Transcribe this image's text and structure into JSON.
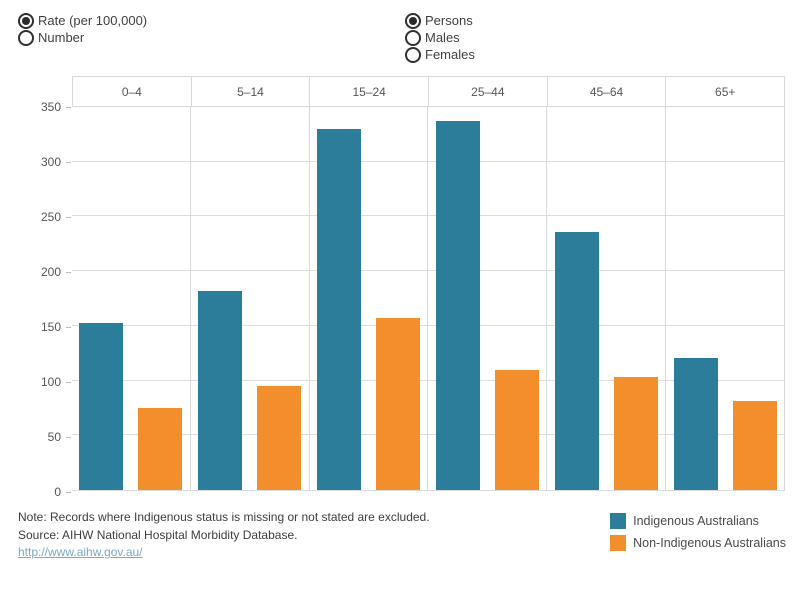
{
  "controls": {
    "measure": {
      "name": "measure",
      "options": [
        {
          "label": "Rate (per 100,000)",
          "selected": true
        },
        {
          "label": "Number",
          "selected": false
        }
      ]
    },
    "sex": {
      "name": "sex",
      "options": [
        {
          "label": "Persons",
          "selected": true
        },
        {
          "label": "Males",
          "selected": false
        },
        {
          "label": "Females",
          "selected": false
        }
      ]
    }
  },
  "chart_data": {
    "type": "bar",
    "categories": [
      "0–4",
      "5–14",
      "15–24",
      "25–44",
      "45–64",
      "65+"
    ],
    "series": [
      {
        "name": "Indigenous Australians",
        "color": "#2b7d99",
        "values": [
          153,
          182,
          330,
          337,
          236,
          121
        ]
      },
      {
        "name": "Non-Indigenous Australians",
        "color": "#f28e2b",
        "values": [
          75,
          95,
          157,
          110,
          103,
          81
        ]
      }
    ],
    "ylim": [
      0,
      350
    ],
    "yticks": [
      0,
      50,
      100,
      150,
      200,
      250,
      300,
      350
    ],
    "grid": true,
    "legend_position": "bottom-right",
    "title": "",
    "xlabel": "",
    "ylabel": ""
  },
  "footer": {
    "note": "Note: Records where Indigenous status is missing or not stated are excluded.",
    "source": "Source: AIHW National Hospital Morbidity Database.",
    "link": "http://www.aihw.gov.au/"
  },
  "colors": {
    "indigenous": "#2b7d99",
    "non_indigenous": "#f28e2b",
    "grid": "#d9d9d9",
    "link": "#7aa9c2"
  }
}
